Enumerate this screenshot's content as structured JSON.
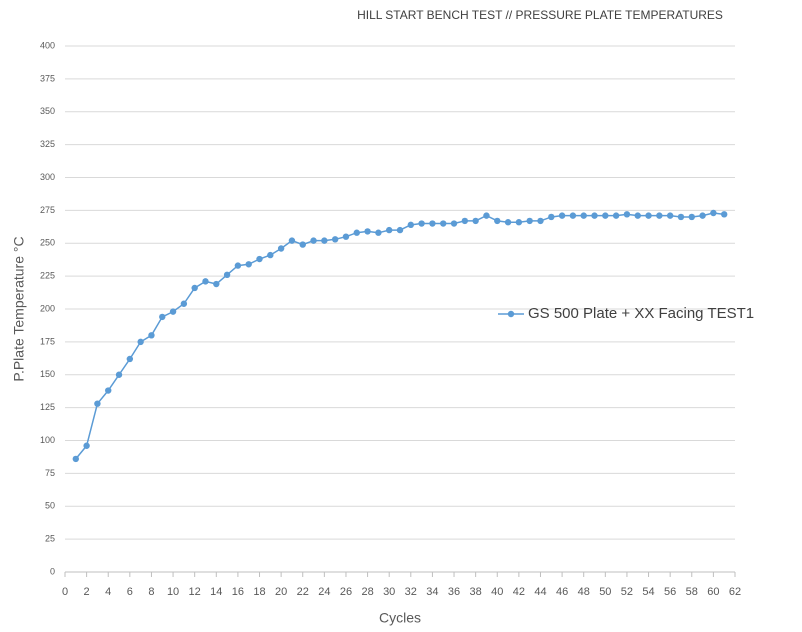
{
  "chart_data": {
    "type": "line",
    "title": "HILL START BENCH TEST // PRESSURE PLATE TEMPERATURES",
    "x_label": "Cycles",
    "y_label": "P.Plate Temperature °C",
    "x": [
      1,
      2,
      3,
      4,
      5,
      6,
      7,
      8,
      9,
      10,
      11,
      12,
      13,
      14,
      15,
      16,
      17,
      18,
      19,
      20,
      21,
      22,
      23,
      24,
      25,
      26,
      27,
      28,
      29,
      30,
      31,
      32,
      33,
      34,
      35,
      36,
      37,
      38,
      39,
      40,
      41,
      42,
      43,
      44,
      45,
      46,
      47,
      48,
      49,
      50,
      51,
      52,
      53,
      54,
      55,
      56,
      57,
      58,
      59,
      60,
      61
    ],
    "series": [
      {
        "name": "GS 500 Plate + XX Facing TEST1",
        "color": "#5b9bd5",
        "values": [
          86,
          96,
          128,
          138,
          150,
          162,
          175,
          180,
          194,
          198,
          204,
          216,
          221,
          219,
          226,
          233,
          234,
          238,
          241,
          246,
          252,
          249,
          252,
          252,
          253,
          255,
          258,
          259,
          258,
          260,
          260,
          264,
          265,
          265,
          265,
          265,
          267,
          267,
          271,
          267,
          266,
          266,
          267,
          267,
          270,
          271,
          271,
          271,
          271,
          271,
          271,
          272,
          271,
          271,
          271,
          271,
          270,
          270,
          271,
          273,
          272
        ]
      }
    ],
    "xlim": [
      0,
      62
    ],
    "xticks": [
      0,
      2,
      4,
      6,
      8,
      10,
      12,
      14,
      16,
      18,
      20,
      22,
      24,
      26,
      28,
      30,
      32,
      34,
      36,
      38,
      40,
      42,
      44,
      46,
      48,
      50,
      52,
      54,
      56,
      58,
      60,
      62
    ],
    "ylim": [
      0,
      400
    ],
    "yticks": [
      0,
      25,
      50,
      75,
      100,
      125,
      150,
      175,
      200,
      225,
      250,
      275,
      300,
      325,
      350,
      375,
      400
    ],
    "grid": true,
    "legend": "right"
  }
}
